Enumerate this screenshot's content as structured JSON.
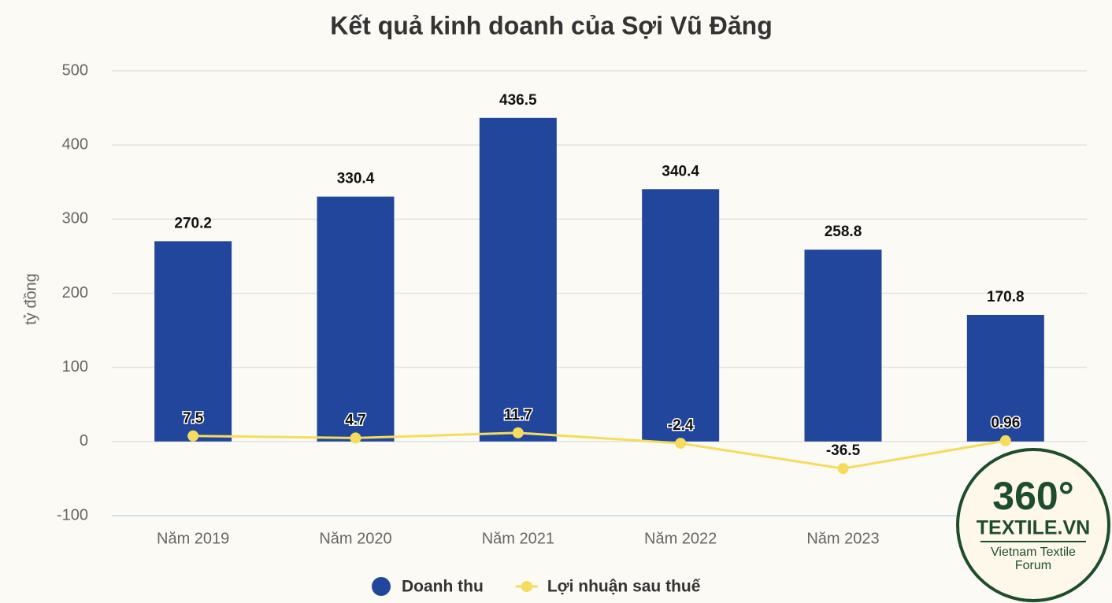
{
  "chart_data": {
    "type": "bar",
    "title": "Kết quả kinh doanh của Sợi Vũ Đăng",
    "y_axis_label": "tỷ đồng",
    "categories": [
      "Năm 2019",
      "Năm 2020",
      "Năm 2021",
      "Năm 2022",
      "Năm 2023",
      null
    ],
    "series": [
      {
        "name": "Doanh thu",
        "type": "bar",
        "color": "#21469b",
        "values": [
          270.2,
          330.4,
          436.5,
          340.4,
          258.8,
          170.8
        ]
      },
      {
        "name": "Lợi nhuận sau thuế",
        "type": "line",
        "color": "#f5dc5c",
        "values": [
          7.5,
          4.7,
          11.7,
          -2.4,
          -36.5,
          0.96
        ]
      }
    ],
    "ylim": [
      -100,
      500
    ],
    "yticks": [
      -100,
      0,
      100,
      200,
      300,
      400,
      500
    ],
    "grid": true,
    "legend": "bottom"
  },
  "watermark": {
    "brand": "360°",
    "site": "TEXTILE.VN",
    "tagline": [
      "Vietnam Textile",
      "Forum"
    ]
  }
}
